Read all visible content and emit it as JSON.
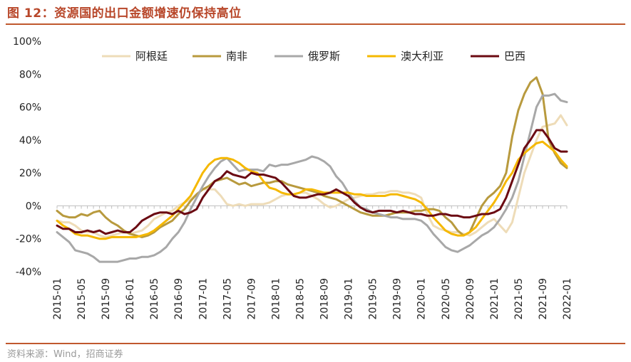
{
  "figure": {
    "title": "图 12：资源国的出口金额增速仍保持高位",
    "source": "资料来源：Wind，招商证券"
  },
  "chart_data": {
    "type": "line",
    "ylim": [
      -40,
      100
    ],
    "yticks": [
      -40,
      -20,
      0,
      20,
      40,
      60,
      80,
      100
    ],
    "ytick_labels": [
      "-40%",
      "-20%",
      "0%",
      "20%",
      "40%",
      "60%",
      "80%",
      "100%"
    ],
    "x": [
      "2015-01",
      "2015-02",
      "2015-03",
      "2015-04",
      "2015-05",
      "2015-06",
      "2015-07",
      "2015-08",
      "2015-09",
      "2015-10",
      "2015-11",
      "2015-12",
      "2016-01",
      "2016-02",
      "2016-03",
      "2016-04",
      "2016-05",
      "2016-06",
      "2016-07",
      "2016-08",
      "2016-09",
      "2016-10",
      "2016-11",
      "2016-12",
      "2017-01",
      "2017-02",
      "2017-03",
      "2017-04",
      "2017-05",
      "2017-06",
      "2017-07",
      "2017-08",
      "2017-09",
      "2017-10",
      "2017-11",
      "2017-12",
      "2018-01",
      "2018-02",
      "2018-03",
      "2018-04",
      "2018-05",
      "2018-06",
      "2018-07",
      "2018-08",
      "2018-09",
      "2018-10",
      "2018-11",
      "2018-12",
      "2019-01",
      "2019-02",
      "2019-03",
      "2019-04",
      "2019-05",
      "2019-06",
      "2019-07",
      "2019-08",
      "2019-09",
      "2019-10",
      "2019-11",
      "2019-12",
      "2020-01",
      "2020-02",
      "2020-03",
      "2020-04",
      "2020-05",
      "2020-06",
      "2020-07",
      "2020-08",
      "2020-09",
      "2020-10",
      "2020-11",
      "2020-12",
      "2021-01",
      "2021-02",
      "2021-03",
      "2021-04",
      "2021-05",
      "2021-06",
      "2021-07",
      "2021-08",
      "2021-09",
      "2021-10",
      "2021-11",
      "2021-12",
      "2022-01"
    ],
    "xtick_labels": [
      "2015-01",
      "2015-05",
      "2015-09",
      "2016-01",
      "2016-05",
      "2016-09",
      "2017-01",
      "2017-05",
      "2017-09",
      "2018-01",
      "2018-05",
      "2018-09",
      "2019-01",
      "2019-05",
      "2019-09",
      "2020-01",
      "2020-05",
      "2020-09",
      "2021-01",
      "2021-05",
      "2021-09",
      "2022-01"
    ],
    "series": [
      {
        "name": "阿根廷",
        "color": "#eedcb8",
        "values": [
          -9,
          -10,
          -10,
          -12,
          -15,
          -16,
          -16,
          -18,
          -19,
          -18,
          -17,
          -16,
          -17,
          -16,
          -15,
          -12,
          -8,
          -6,
          -4,
          -3,
          0,
          2,
          4,
          7,
          10,
          10,
          10,
          6,
          1,
          0,
          1,
          0,
          1,
          1,
          1,
          2,
          4,
          6,
          7,
          7,
          8,
          8,
          6,
          4,
          1,
          -1,
          0,
          2,
          4,
          5,
          6,
          7,
          7,
          8,
          8,
          9,
          9,
          8,
          8,
          7,
          5,
          -5,
          -12,
          -14,
          -15,
          -16,
          -16,
          -17,
          -18,
          -16,
          -13,
          -10,
          -8,
          -12,
          -16,
          -10,
          5,
          20,
          30,
          40,
          48,
          49,
          50,
          55,
          49
        ]
      },
      {
        "name": "南非",
        "color": "#b89a3e",
        "values": [
          -3,
          -6,
          -7,
          -7,
          -5,
          -6,
          -4,
          -3,
          -7,
          -10,
          -12,
          -15,
          -17,
          -18,
          -19,
          -18,
          -16,
          -13,
          -11,
          -9,
          -5,
          -2,
          3,
          7,
          10,
          12,
          15,
          16,
          17,
          15,
          13,
          14,
          12,
          13,
          14,
          14,
          15,
          15,
          13,
          12,
          11,
          10,
          9,
          8,
          6,
          5,
          4,
          2,
          0,
          -2,
          -4,
          -5,
          -6,
          -6,
          -6,
          -5,
          -4,
          -4,
          -4,
          -3,
          -3,
          -2,
          -2,
          -3,
          -7,
          -10,
          -15,
          -18,
          -16,
          -8,
          0,
          5,
          8,
          12,
          20,
          42,
          58,
          68,
          75,
          78,
          68,
          40,
          32,
          26,
          23
        ]
      },
      {
        "name": "俄罗斯",
        "color": "#a8a8a8",
        "values": [
          -16,
          -19,
          -22,
          -27,
          -28,
          -29,
          -31,
          -34,
          -34,
          -34,
          -34,
          -33,
          -32,
          -32,
          -31,
          -31,
          -30,
          -28,
          -25,
          -20,
          -16,
          -10,
          -2,
          5,
          12,
          18,
          23,
          27,
          29,
          25,
          21,
          22,
          22,
          22,
          21,
          25,
          24,
          25,
          25,
          26,
          27,
          28,
          30,
          29,
          27,
          24,
          18,
          14,
          8,
          3,
          -1,
          -2,
          -4,
          -5,
          -6,
          -7,
          -7,
          -8,
          -8,
          -8,
          -9,
          -12,
          -17,
          -21,
          -25,
          -27,
          -28,
          -26,
          -24,
          -21,
          -18,
          -16,
          -13,
          -8,
          -2,
          5,
          15,
          30,
          45,
          60,
          67,
          67,
          68,
          64,
          63
        ]
      },
      {
        "name": "澳大利亚",
        "color": "#f5b800",
        "values": [
          -9,
          -12,
          -14,
          -17,
          -18,
          -18,
          -19,
          -20,
          -20,
          -19,
          -19,
          -19,
          -19,
          -19,
          -18,
          -17,
          -15,
          -12,
          -9,
          -6,
          -2,
          2,
          6,
          13,
          20,
          25,
          28,
          29,
          29,
          28,
          26,
          23,
          21,
          20,
          15,
          11,
          10,
          8,
          7,
          7,
          8,
          10,
          10,
          9,
          8,
          8,
          8,
          8,
          8,
          7,
          7,
          6,
          6,
          6,
          6,
          7,
          7,
          6,
          5,
          4,
          2,
          -2,
          -7,
          -11,
          -15,
          -17,
          -18,
          -18,
          -16,
          -13,
          -8,
          -3,
          2,
          8,
          15,
          20,
          28,
          32,
          35,
          38,
          39,
          36,
          33,
          28,
          24
        ]
      },
      {
        "name": "巴西",
        "color": "#6b0a12",
        "values": [
          -12,
          -14,
          -14,
          -16,
          -16,
          -15,
          -16,
          -15,
          -17,
          -16,
          -15,
          -16,
          -16,
          -13,
          -9,
          -7,
          -5,
          -4,
          -4,
          -5,
          -3,
          -5,
          -4,
          -2,
          5,
          10,
          15,
          17,
          21,
          19,
          18,
          17,
          20,
          19,
          19,
          18,
          17,
          14,
          10,
          6,
          5,
          5,
          6,
          7,
          7,
          8,
          10,
          8,
          6,
          2,
          -1,
          -3,
          -4,
          -3,
          -3,
          -3,
          -4,
          -3,
          -4,
          -5,
          -5,
          -6,
          -6,
          -5,
          -5,
          -6,
          -6,
          -7,
          -7,
          -6,
          -5,
          -5,
          -4,
          -2,
          5,
          15,
          25,
          35,
          40,
          46,
          46,
          41,
          35,
          33,
          33
        ]
      }
    ],
    "legend_position": "top",
    "grid": false
  }
}
